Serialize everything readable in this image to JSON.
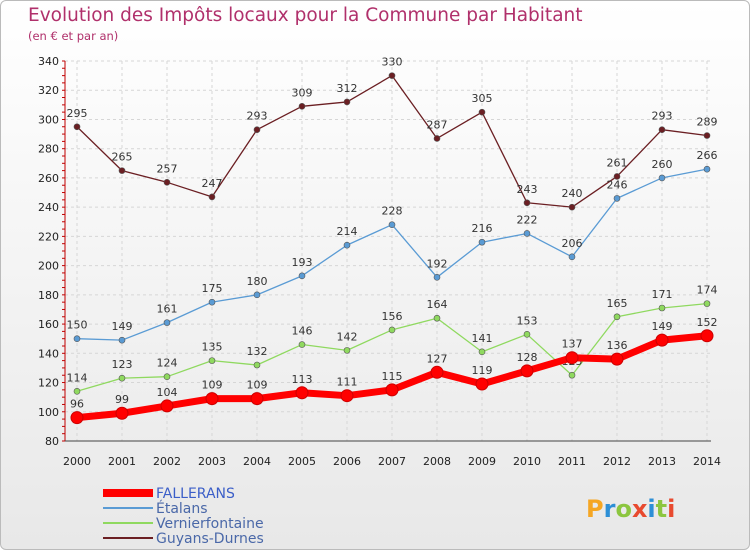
{
  "chart_data": {
    "type": "line",
    "title": "Evolution des Impôts locaux pour la Commune par Habitant",
    "subtitle": "(en € et par an)",
    "x": [
      "2000",
      "2001",
      "2002",
      "2003",
      "2004",
      "2005",
      "2006",
      "2007",
      "2008",
      "2009",
      "2010",
      "2011",
      "2012",
      "2013",
      "2014"
    ],
    "ylim": [
      80,
      340
    ],
    "yticks": [
      80,
      100,
      120,
      140,
      160,
      180,
      200,
      220,
      240,
      260,
      280,
      300,
      320,
      340
    ],
    "grid": true,
    "legend_position": "bottom-left",
    "series": [
      {
        "name": "FALLERANS",
        "color": "#ff0000",
        "values": [
          96,
          99,
          104,
          109,
          109,
          113,
          111,
          115,
          127,
          119,
          128,
          137,
          136,
          149,
          152
        ]
      },
      {
        "name": "Étalans",
        "color": "#5a9bd4",
        "values": [
          150,
          149,
          161,
          175,
          180,
          193,
          214,
          228,
          192,
          216,
          222,
          206,
          246,
          260,
          266
        ]
      },
      {
        "name": "Vernierfontaine",
        "color": "#8fd95f",
        "values": [
          114,
          123,
          124,
          135,
          132,
          146,
          142,
          156,
          164,
          141,
          153,
          125,
          165,
          171,
          174
        ]
      },
      {
        "name": "Guyans-Durnes",
        "color": "#6b1f23",
        "values": [
          295,
          265,
          257,
          247,
          293,
          309,
          312,
          330,
          287,
          305,
          243,
          240,
          261,
          293,
          289
        ]
      }
    ],
    "logo": "Proxiti"
  }
}
